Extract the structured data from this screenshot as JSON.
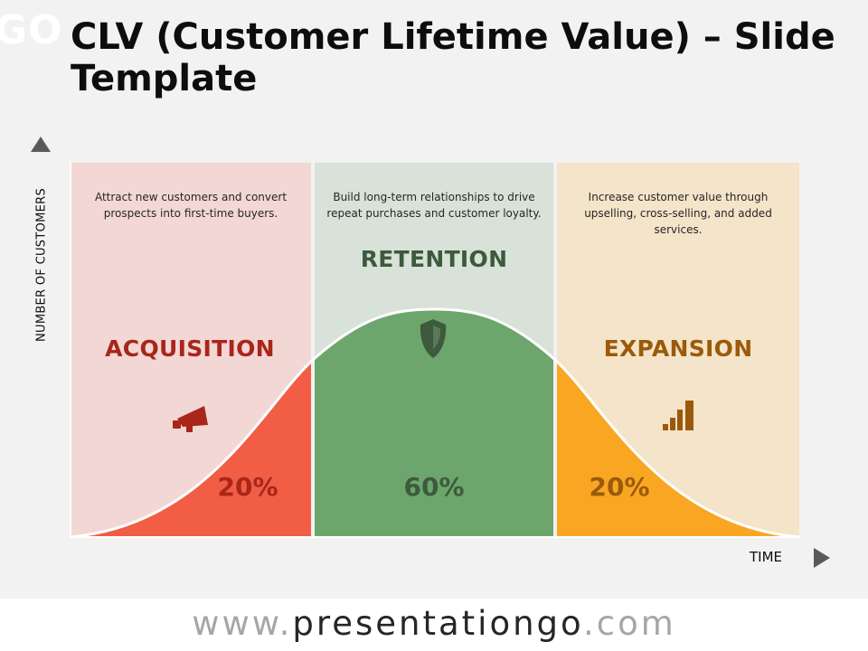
{
  "slide": {
    "logo_fragment": "GO",
    "title": "CLV (Customer Lifetime Value) – Slide Template"
  },
  "axes": {
    "y_label": "NUMBER OF CUSTOMERS",
    "x_label": "TIME"
  },
  "stages": [
    {
      "name": "ACQUISITION",
      "description": "Attract new customers and convert prospects into first-time buyers.",
      "percent": "20%",
      "icon": "megaphone-icon",
      "panel_color": "#f2d7d5",
      "area_color": "#f15d45",
      "text_color": "#a8261a"
    },
    {
      "name": "RETENTION",
      "description": "Build long-term relationships to drive repeat purchases and customer loyalty.",
      "percent": "60%",
      "icon": "shield-icon",
      "panel_color": "#d8e2d8",
      "area_color": "#6da66d",
      "text_color": "#3d5a3d"
    },
    {
      "name": "EXPANSION",
      "description": "Increase customer value through upselling, cross-selling, and added services.",
      "percent": "20%",
      "icon": "bar-chart-icon",
      "panel_color": "#f4e4c9",
      "area_color": "#f9a623",
      "text_color": "#9b5a0b"
    }
  ],
  "footer": {
    "url_prefix": "www.",
    "url_brand": "presentationgo",
    "url_suffix": ".com"
  }
}
